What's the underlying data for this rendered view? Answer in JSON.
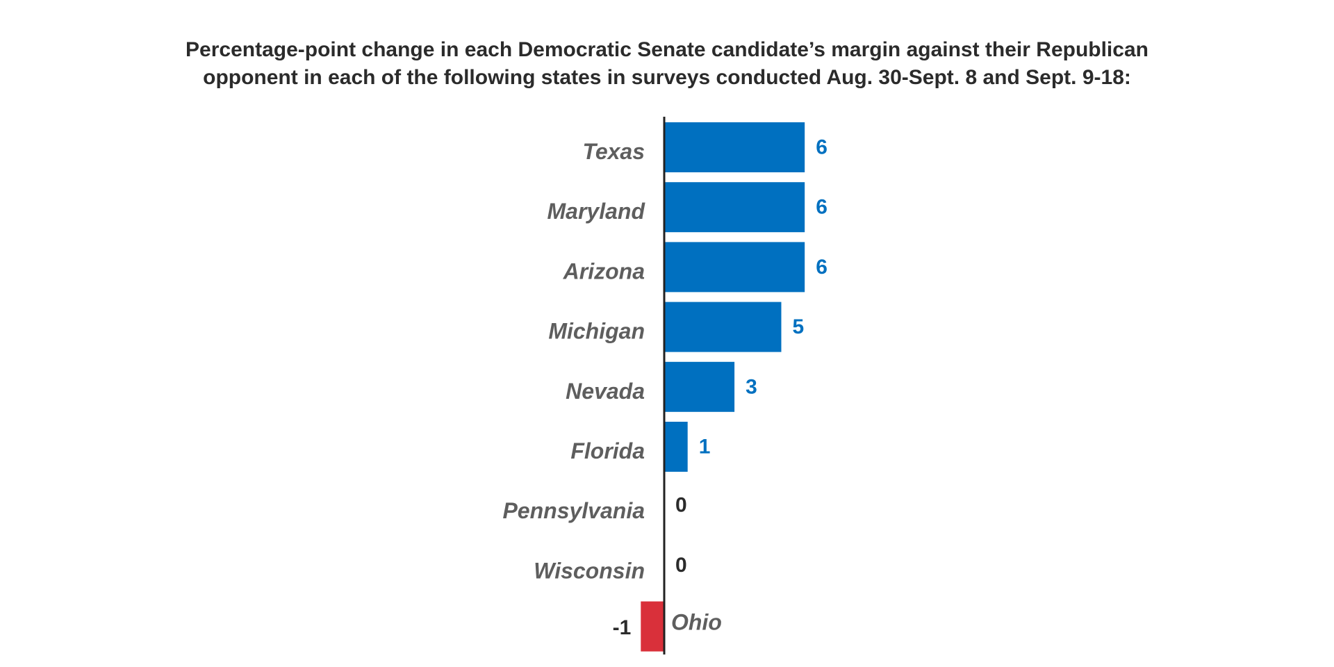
{
  "chart_data": {
    "type": "bar",
    "orientation": "horizontal",
    "title_lines": [
      "Percentage-point change in each Democratic Senate candidate’s margin against their Republican",
      "opponent in each of the following states in surveys conducted Aug. 30-Sept. 8 and Sept. 9-18:"
    ],
    "categories": [
      "Texas",
      "Maryland",
      "Arizona",
      "Michigan",
      "Nevada",
      "Florida",
      "Pennsylvania",
      "Wisconsin",
      "Ohio"
    ],
    "values": [
      6,
      6,
      6,
      5,
      3,
      1,
      0,
      0,
      -1
    ],
    "value_labels": [
      "6",
      "6",
      "6",
      "5",
      "3",
      "1",
      "0",
      "0",
      "-1"
    ],
    "xlim": [
      -1,
      6
    ],
    "grid": false,
    "legend": "none",
    "colors": {
      "positive_bar": "#0070c0",
      "negative_bar": "#d9303a",
      "positive_value_text": "#0070c0",
      "neutral_value_text": "#2b2b2b",
      "category_text": "#5e5e5e",
      "axis": "#222222",
      "title_text": "#2b2b2b"
    }
  }
}
